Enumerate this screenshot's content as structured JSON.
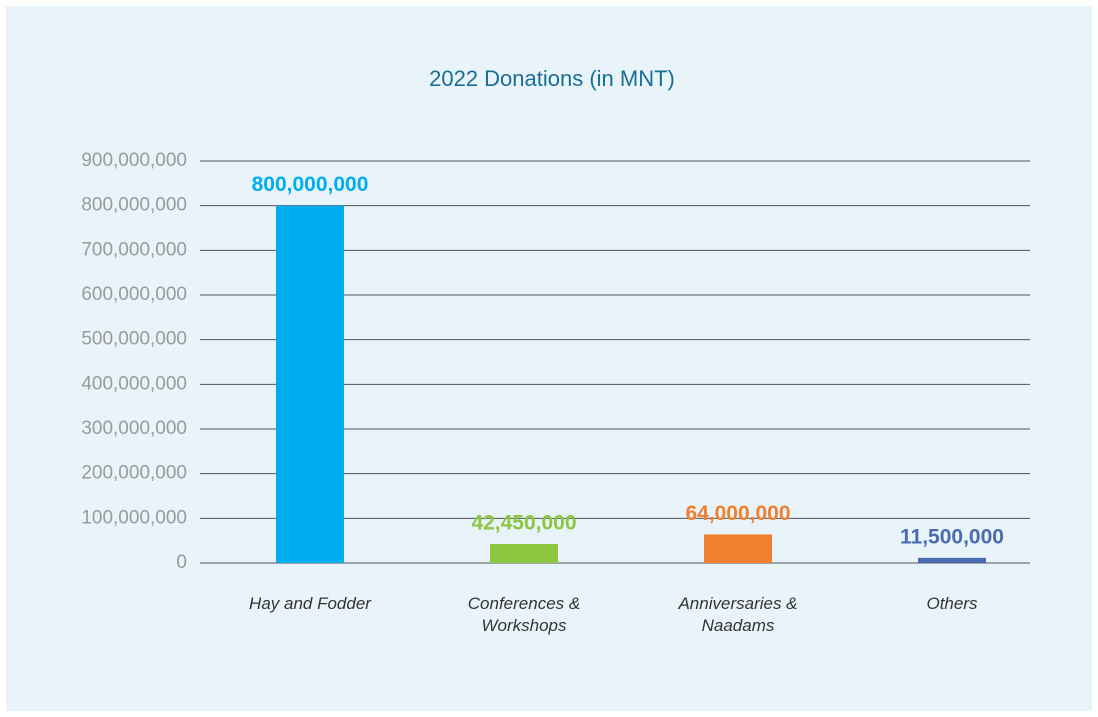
{
  "chart_data": {
    "type": "bar",
    "title": "2022 Donations (in MNT)",
    "categories": [
      "Hay and Fodder",
      "Conferences & Workshops",
      "Anniversaries & Naadams",
      "Others"
    ],
    "values": [
      800000000,
      42450000,
      64000000,
      11500000
    ],
    "value_labels": [
      "800,000,000",
      "42,450,000",
      "64,000,000",
      "11,500,000"
    ],
    "colors": [
      "#00aeef",
      "#8dc63f",
      "#f07f2e",
      "#4a6bb0"
    ],
    "ylim": [
      0,
      900000000
    ],
    "yticks": [
      0,
      {
        "value": 100000000,
        "label": "100,000,000"
      },
      {
        "value": 200000000,
        "label": "200,000,000"
      },
      {
        "value": 300000000,
        "label": "300,000,000"
      },
      {
        "value": 400000000,
        "label": "400,000,000"
      },
      {
        "value": 500000000,
        "label": "500,000,000"
      },
      {
        "value": 600000000,
        "label": "600,000,000"
      },
      {
        "value": 700000000,
        "label": "700,000,000"
      },
      {
        "value": 800000000,
        "label": "800,000,000"
      },
      {
        "value": 900000000,
        "label": "900,000,000"
      }
    ],
    "grid": true
  }
}
